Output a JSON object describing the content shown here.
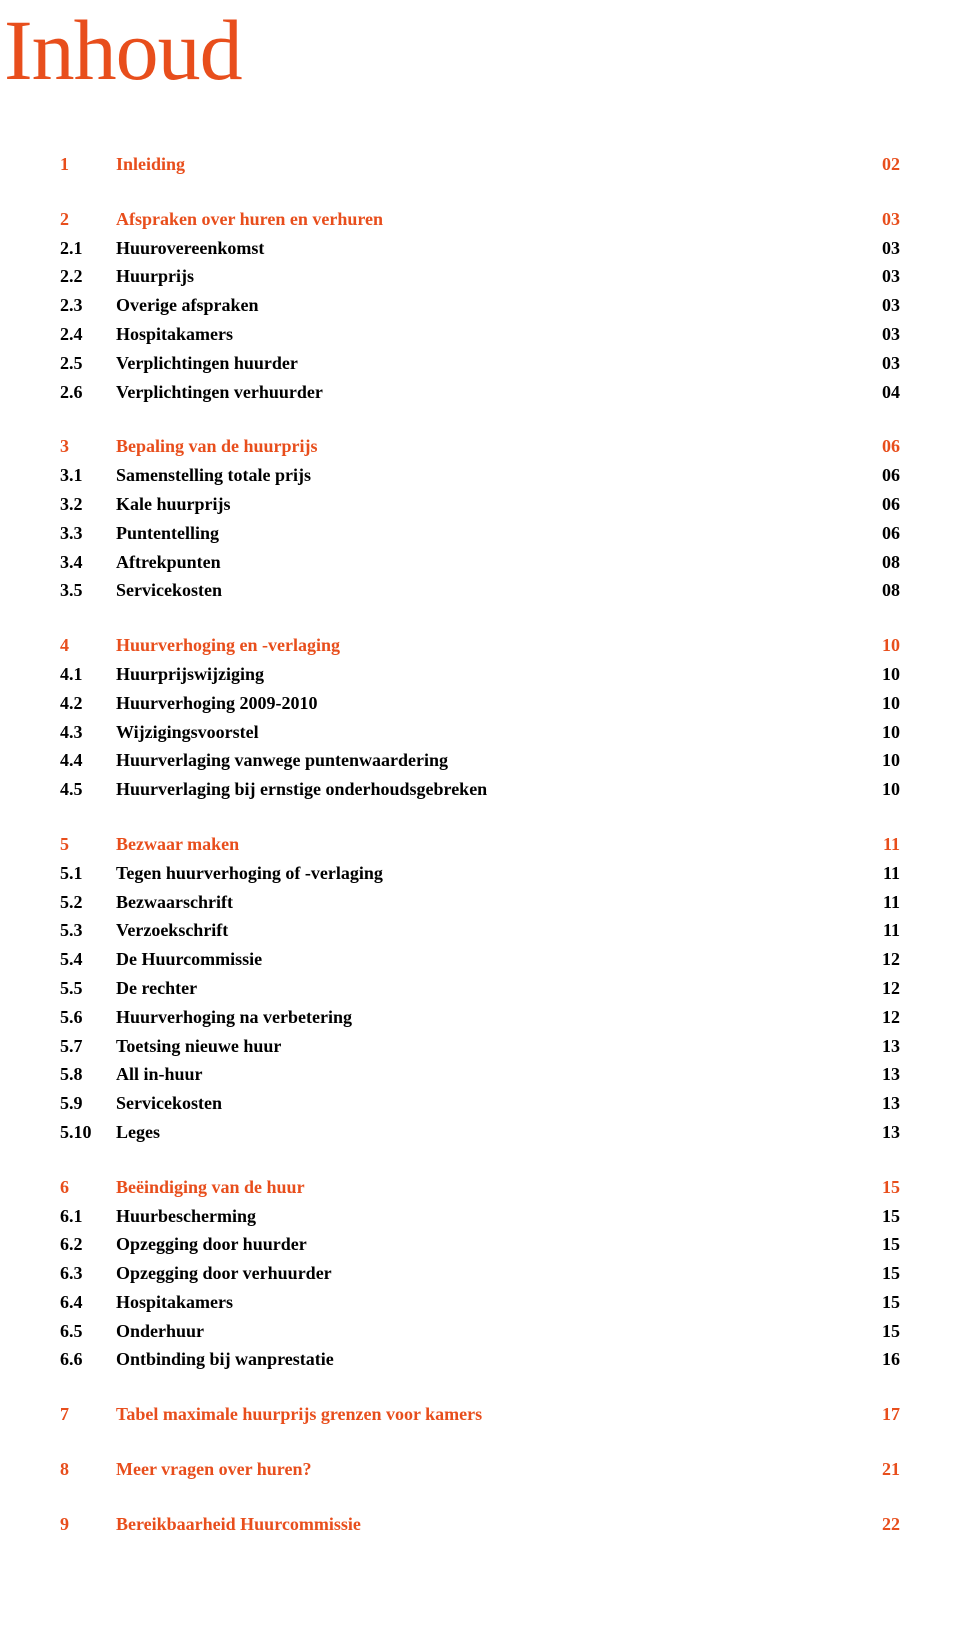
{
  "title": "Inhoud",
  "colors": {
    "accent": "#e84e1c",
    "text": "#000000",
    "background": "#ffffff"
  },
  "sections": [
    {
      "num": "1",
      "label": "Inleiding",
      "page": "02",
      "items": []
    },
    {
      "num": "2",
      "label": "Afspraken over huren en verhuren",
      "page": "03",
      "items": [
        {
          "num": "2.1",
          "label": "Huurovereenkomst",
          "page": "03"
        },
        {
          "num": "2.2",
          "label": "Huurprijs",
          "page": "03"
        },
        {
          "num": "2.3",
          "label": "Overige afspraken",
          "page": "03"
        },
        {
          "num": "2.4",
          "label": "Hospitakamers",
          "page": "03"
        },
        {
          "num": "2.5",
          "label": "Verplichtingen huurder",
          "page": "03"
        },
        {
          "num": "2.6",
          "label": "Verplichtingen verhuurder",
          "page": "04"
        }
      ]
    },
    {
      "num": "3",
      "label": "Bepaling van de huurprijs",
      "page": "06",
      "items": [
        {
          "num": "3.1",
          "label": "Samenstelling totale prijs",
          "page": "06"
        },
        {
          "num": "3.2",
          "label": "Kale huurprijs",
          "page": "06"
        },
        {
          "num": "3.3",
          "label": "Puntentelling",
          "page": "06"
        },
        {
          "num": "3.4",
          "label": "Aftrekpunten",
          "page": "08"
        },
        {
          "num": "3.5",
          "label": "Servicekosten",
          "page": "08"
        }
      ]
    },
    {
      "num": "4",
      "label": "Huurverhoging en -verlaging",
      "page": "10",
      "items": [
        {
          "num": "4.1",
          "label": "Huurprijswijziging",
          "page": "10"
        },
        {
          "num": "4.2",
          "label": "Huurverhoging 2009-2010",
          "page": "10"
        },
        {
          "num": "4.3",
          "label": "Wijzigingsvoorstel",
          "page": "10"
        },
        {
          "num": "4.4",
          "label": "Huurverlaging vanwege puntenwaardering",
          "page": "10"
        },
        {
          "num": "4.5",
          "label": "Huurverlaging bij ernstige onderhoudsgebreken",
          "page": "10"
        }
      ]
    },
    {
      "num": "5",
      "label": "Bezwaar maken",
      "page": "11",
      "items": [
        {
          "num": "5.1",
          "label": "Tegen huurverhoging of -verlaging",
          "page": "11"
        },
        {
          "num": "5.2",
          "label": "Bezwaarschrift",
          "page": "11"
        },
        {
          "num": "5.3",
          "label": "Verzoekschrift",
          "page": "11"
        },
        {
          "num": "5.4",
          "label": "De Huurcommissie",
          "page": "12"
        },
        {
          "num": "5.5",
          "label": "De rechter",
          "page": "12"
        },
        {
          "num": "5.6",
          "label": "Huurverhoging na verbetering",
          "page": "12"
        },
        {
          "num": "5.7",
          "label": "Toetsing nieuwe huur",
          "page": "13"
        },
        {
          "num": "5.8",
          "label": "All in-huur",
          "page": "13"
        },
        {
          "num": "5.9",
          "label": "Servicekosten",
          "page": "13"
        },
        {
          "num": "5.10",
          "label": "Leges",
          "page": "13"
        }
      ]
    },
    {
      "num": "6",
      "label": "Beëindiging van de huur",
      "page": "15",
      "items": [
        {
          "num": "6.1",
          "label": "Huurbescherming",
          "page": "15"
        },
        {
          "num": "6.2",
          "label": "Opzegging door huurder",
          "page": "15"
        },
        {
          "num": "6.3",
          "label": "Opzegging door verhuurder",
          "page": "15"
        },
        {
          "num": "6.4",
          "label": "Hospitakamers",
          "page": "15"
        },
        {
          "num": "6.5",
          "label": "Onderhuur",
          "page": "15"
        },
        {
          "num": "6.6",
          "label": "Ontbinding bij wanprestatie",
          "page": "16"
        }
      ]
    },
    {
      "num": "7",
      "label": "Tabel maximale huurprijs grenzen voor kamers",
      "page": "17",
      "items": []
    },
    {
      "num": "8",
      "label": "Meer vragen over huren?",
      "page": "21",
      "items": []
    },
    {
      "num": "9",
      "label": "Bereikbaarheid Huurcommissie",
      "page": "22",
      "items": []
    }
  ]
}
